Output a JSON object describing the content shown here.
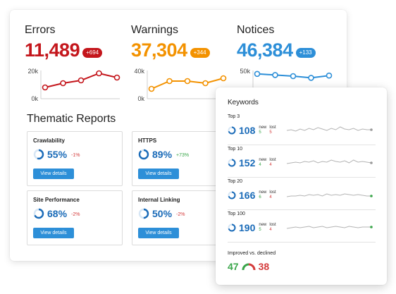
{
  "metrics": [
    {
      "title": "Errors",
      "value": "11,489",
      "badge": "+694",
      "color": "#c4161c",
      "axis_top": "20k",
      "axis_bottom": "0k",
      "points": [
        8,
        11,
        13,
        18,
        15
      ]
    },
    {
      "title": "Warnings",
      "value": "37,304",
      "badge": "+344",
      "color": "#f39200",
      "axis_top": "40k",
      "axis_bottom": "0k",
      "points": [
        14,
        25,
        25,
        22,
        29
      ]
    },
    {
      "title": "Notices",
      "value": "46,384",
      "badge": "+133",
      "color": "#2d8fd8",
      "axis_top": "50k",
      "axis_bottom": "0k",
      "points": [
        44,
        42,
        40,
        37,
        41
      ]
    }
  ],
  "thematic": {
    "title": "Thematic Reports",
    "button_label": "View details",
    "reports": [
      {
        "name": "Crawlability",
        "value": "55%",
        "change": "-1%",
        "change_color": "#d43b3b",
        "fraction": 0.55
      },
      {
        "name": "HTTPS",
        "value": "89%",
        "change": "+73%",
        "change_color": "#3aa64a",
        "fraction": 0.89
      },
      {
        "name": "Site Performance",
        "value": "68%",
        "change": "-2%",
        "change_color": "#d43b3b",
        "fraction": 0.68
      },
      {
        "name": "Internal Linking",
        "value": "50%",
        "change": "-2%",
        "change_color": "#d43b3b",
        "fraction": 0.5
      }
    ]
  },
  "keywords": {
    "title": "Keywords",
    "new_label": "new",
    "lost_label": "lost",
    "rows": [
      {
        "label": "Top 3",
        "value": "108",
        "new": "5",
        "lost": "5",
        "dot": "#999999"
      },
      {
        "label": "Top 10",
        "value": "152",
        "new": "4",
        "lost": "4",
        "dot": "#999999"
      },
      {
        "label": "Top 20",
        "value": "166",
        "new": "6",
        "lost": "4",
        "dot": "#3aa64a"
      },
      {
        "label": "Top 100",
        "value": "190",
        "new": "5",
        "lost": "4",
        "dot": "#3aa64a"
      }
    ],
    "improved_label": "Improved vs. declined",
    "improved": "47",
    "declined": "38",
    "improved_color": "#3aa64a",
    "declined_color": "#d43b3b"
  }
}
